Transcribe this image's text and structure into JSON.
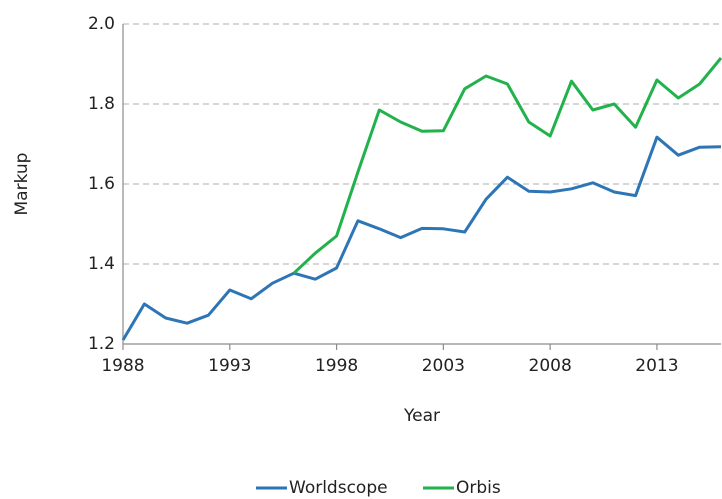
{
  "chart_data": {
    "type": "line",
    "x_label": "Year",
    "y_label": "Markup",
    "x": [
      1988,
      1989,
      1990,
      1991,
      1992,
      1993,
      1994,
      1995,
      1996,
      1997,
      1998,
      1999,
      2000,
      2001,
      2002,
      2003,
      2004,
      2005,
      2006,
      2007,
      2008,
      2009,
      2010,
      2011,
      2012,
      2013,
      2014,
      2015,
      2016
    ],
    "series": [
      {
        "name": "Worldscope",
        "color": "#2e75b6",
        "values": [
          1.21,
          1.3,
          1.265,
          1.252,
          1.272,
          1.335,
          1.313,
          1.352,
          1.377,
          1.362,
          1.39,
          1.508,
          1.488,
          1.466,
          1.489,
          1.488,
          1.48,
          1.562,
          1.617,
          1.582,
          1.58,
          1.588,
          1.603,
          1.58,
          1.571,
          1.717,
          1.672,
          1.692,
          1.693
        ]
      },
      {
        "name": "Orbis",
        "color": "#22b24c",
        "values": [
          null,
          null,
          null,
          null,
          null,
          null,
          null,
          null,
          1.377,
          1.427,
          1.47,
          1.63,
          1.785,
          1.755,
          1.732,
          1.733,
          1.838,
          1.87,
          1.85,
          1.755,
          1.72,
          1.857,
          1.785,
          1.8,
          1.742,
          1.86,
          1.815,
          1.85,
          1.915
        ]
      }
    ],
    "xlim": [
      1988,
      2016
    ],
    "xticks": [
      1988,
      1993,
      1998,
      2003,
      2008,
      2013
    ],
    "ylim": [
      1.2,
      2.0
    ],
    "yticks": [
      {
        "value": 1.2,
        "label": "1.2"
      },
      {
        "value": 1.4,
        "label": "1.4"
      },
      {
        "value": 1.6,
        "label": "1.6"
      },
      {
        "value": 1.8,
        "label": "1.8"
      },
      {
        "value": 2.0,
        "label": "2.0"
      }
    ],
    "grid": true,
    "legend": "bottom"
  }
}
